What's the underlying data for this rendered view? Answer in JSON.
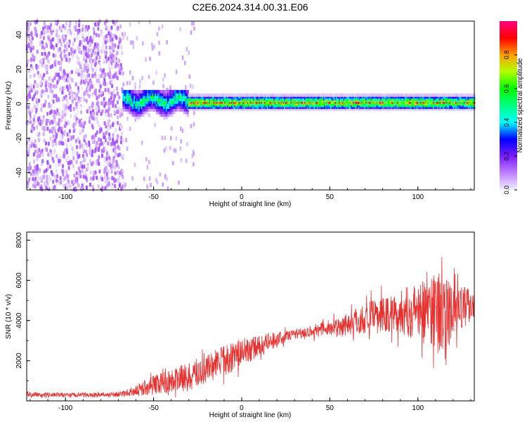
{
  "title": "C2E6.2024.314.00.31.E06",
  "chart_data": [
    {
      "type": "heatmap",
      "xlabel": "Height of straight line (km)",
      "ylabel": "Frequency (Hz)",
      "xlim": [
        -122,
        132
      ],
      "ylim": [
        -50,
        48
      ],
      "xticks": [
        -100,
        -50,
        0,
        50,
        100
      ],
      "yticks": [
        -40,
        -20,
        0,
        20,
        40
      ],
      "colorbar": {
        "label": "Normalized spectral amplitude",
        "range": [
          0,
          1
        ],
        "ticks": [
          0.0,
          0.2,
          0.4,
          0.6,
          0.8
        ],
        "tick_labels": [
          "0.0",
          "0.2",
          "0.4",
          "0.6",
          "0.8"
        ],
        "colormap": [
          "#f0f0ff",
          "#c080ff",
          "#7a1cff",
          "#0000ff",
          "#00ffff",
          "#00ff80",
          "#00ff00",
          "#b0ff00",
          "#ffa000",
          "#ff0000",
          "#ff0080"
        ]
      },
      "regions": [
        {
          "x_range": [
            -122,
            -67
          ],
          "freq_range": [
            -50,
            48
          ],
          "amplitude": [
            0.0,
            0.15
          ],
          "pattern": "broadband noise"
        },
        {
          "x_range": [
            -67,
            -30
          ],
          "freq_range": [
            -8,
            8
          ],
          "amplitude": [
            0.2,
            0.6
          ],
          "pattern": "band near 0 Hz"
        },
        {
          "x_range": [
            -30,
            132
          ],
          "freq_center": 1,
          "freq_halfwidth": 3,
          "amplitude": [
            0.5,
            1.0
          ],
          "pattern": "narrow band near 0 Hz"
        }
      ],
      "grid": false
    },
    {
      "type": "line",
      "xlabel": "Height of straight line (km)",
      "ylabel": "SNR (10 * v/v)",
      "xlim": [
        -122,
        132
      ],
      "ylim": [
        0,
        8400
      ],
      "xticks": [
        -100,
        -50,
        0,
        50,
        100
      ],
      "yticks": [
        2000,
        4000,
        6000,
        8000
      ],
      "color": "#e8302f",
      "grid": false,
      "series_envelope": {
        "x": [
          -122,
          -100,
          -80,
          -67,
          -50,
          -30,
          -15,
          0,
          15,
          30,
          50,
          70,
          90,
          100,
          110,
          115,
          120,
          132
        ],
        "mean": [
          320,
          300,
          300,
          330,
          800,
          1200,
          1800,
          2400,
          2900,
          3350,
          3600,
          4100,
          4400,
          4500,
          4700,
          4300,
          4400,
          4900
        ],
        "spread": [
          120,
          110,
          110,
          140,
          500,
          700,
          800,
          700,
          450,
          250,
          400,
          800,
          1100,
          1500,
          2200,
          1800,
          1400,
          700
        ]
      }
    }
  ]
}
